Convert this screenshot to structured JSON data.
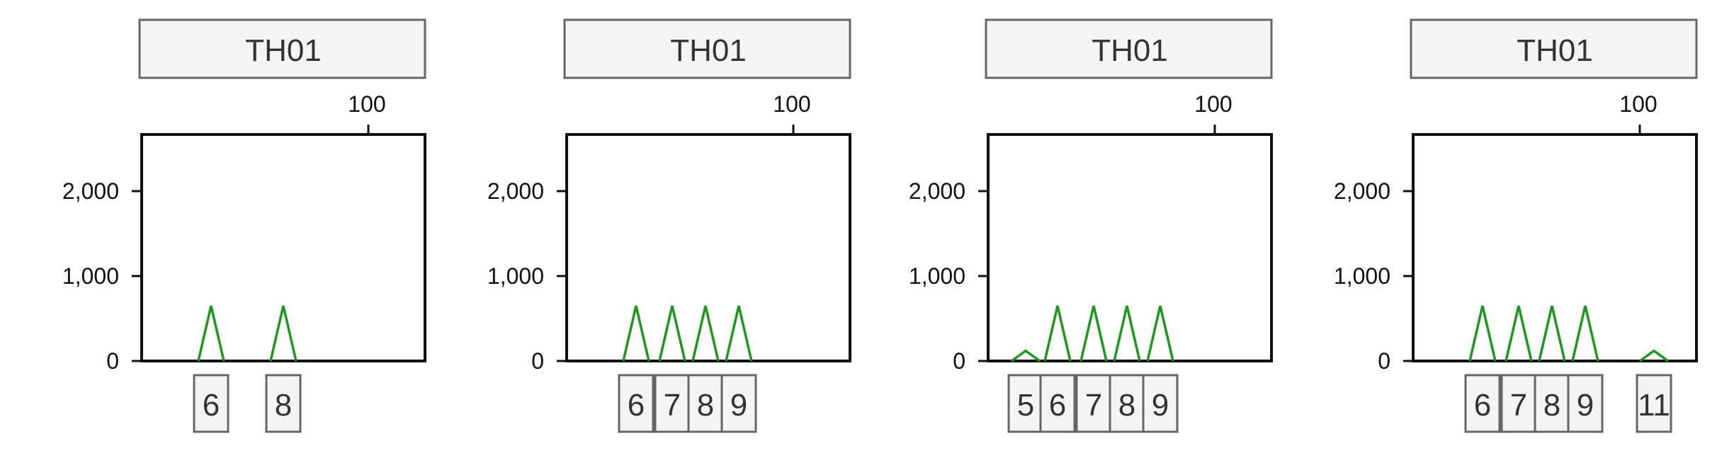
{
  "chart_data": [
    {
      "type": "line",
      "title": "TH01",
      "x_ticks": [
        100
      ],
      "y_ticks": [
        0,
        1000,
        2000
      ],
      "y_tick_labels": [
        "0",
        "1,000",
        "2,000"
      ],
      "x_tick_labels": [
        "100"
      ],
      "peaks": [
        {
          "allele": "6",
          "height": 650
        },
        {
          "allele": "8",
          "height": 650
        }
      ],
      "allele_groups": [
        [
          "6"
        ],
        [
          "8"
        ]
      ]
    },
    {
      "type": "line",
      "title": "TH01",
      "x_ticks": [
        100
      ],
      "y_ticks": [
        0,
        1000,
        2000
      ],
      "y_tick_labels": [
        "0",
        "1,000",
        "2,000"
      ],
      "x_tick_labels": [
        "100"
      ],
      "peaks": [
        {
          "allele": "6",
          "height": 650
        },
        {
          "allele": "7",
          "height": 650
        },
        {
          "allele": "8",
          "height": 650
        },
        {
          "allele": "9",
          "height": 650
        }
      ],
      "allele_groups": [
        [
          "6",
          "7",
          "8",
          "9"
        ]
      ]
    },
    {
      "type": "line",
      "title": "TH01",
      "x_ticks": [
        100
      ],
      "y_ticks": [
        0,
        1000,
        2000
      ],
      "y_tick_labels": [
        "0",
        "1,000",
        "2,000"
      ],
      "x_tick_labels": [
        "100"
      ],
      "peaks": [
        {
          "allele": "5",
          "height": 120
        },
        {
          "allele": "6",
          "height": 650
        },
        {
          "allele": "7",
          "height": 650
        },
        {
          "allele": "8",
          "height": 650
        },
        {
          "allele": "9",
          "height": 650
        }
      ],
      "allele_groups": [
        [
          "5",
          "6",
          "7",
          "8",
          "9"
        ]
      ]
    },
    {
      "type": "line",
      "title": "TH01",
      "x_ticks": [
        100
      ],
      "y_ticks": [
        0,
        1000,
        2000
      ],
      "y_tick_labels": [
        "0",
        "1,000",
        "2,000"
      ],
      "x_tick_labels": [
        "100"
      ],
      "peaks": [
        {
          "allele": "6",
          "height": 650
        },
        {
          "allele": "7",
          "height": 650
        },
        {
          "allele": "8",
          "height": 650
        },
        {
          "allele": "9",
          "height": 650
        },
        {
          "allele": "11",
          "height": 120
        }
      ],
      "allele_groups": [
        [
          "6",
          "7",
          "8",
          "9"
        ],
        [
          "11"
        ]
      ]
    }
  ],
  "colors": {
    "peak": "#1a9a1a",
    "box_fill": "#f4f4f4",
    "box_stroke": "#666666",
    "axis": "#111111"
  }
}
